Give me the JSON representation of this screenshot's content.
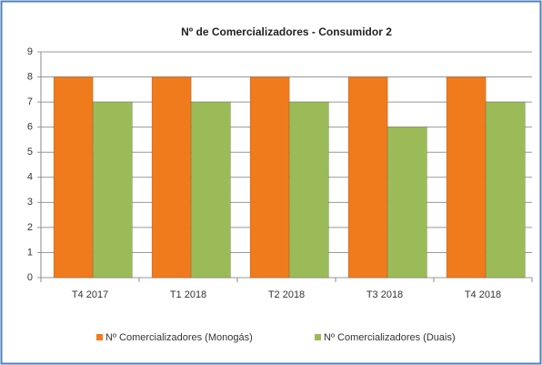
{
  "chart_data": {
    "type": "bar",
    "title": "Nº de Comercializadores - Consumidor 2",
    "categories": [
      "T4 2017",
      "T1 2018",
      "T2 2018",
      "T3 2018",
      "T4 2018"
    ],
    "series": [
      {
        "name": "Nº Comercializadores (Monogás)",
        "color": "#f07b1c",
        "values": [
          8,
          8,
          8,
          8,
          8
        ]
      },
      {
        "name": "Nº Comercializadores (Duais)",
        "color": "#9bbb59",
        "values": [
          7,
          7,
          7,
          6,
          7
        ]
      }
    ],
    "ylim": [
      0,
      9
    ],
    "yticks": [
      0,
      1,
      2,
      3,
      4,
      5,
      6,
      7,
      8,
      9
    ],
    "grid": true,
    "legend": "bottom"
  }
}
